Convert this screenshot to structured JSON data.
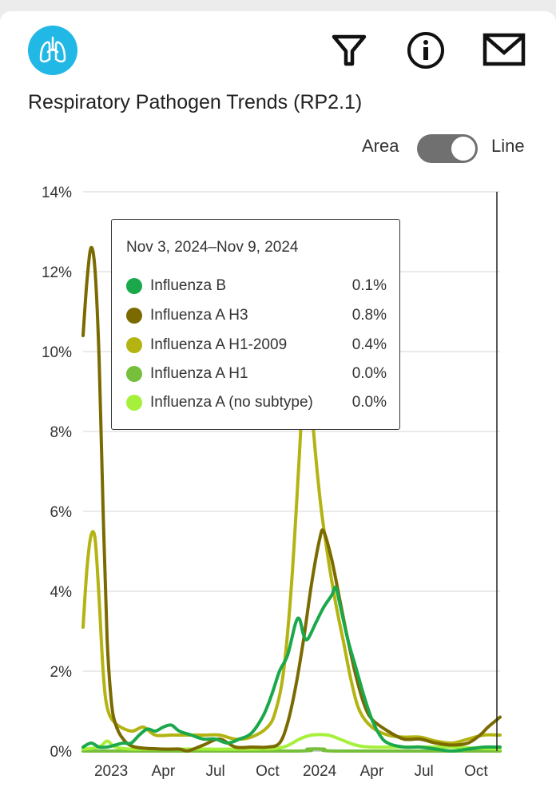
{
  "header": {
    "title": "Respiratory Pathogen Trends (RP2.1)",
    "icons": [
      "lungs-icon",
      "filter-icon",
      "info-icon",
      "mail-icon"
    ],
    "brand_color": "#22b8e6"
  },
  "toggle": {
    "left_label": "Area",
    "right_label": "Line",
    "selected": "Line"
  },
  "tooltip": {
    "date": "Nov 3, 2024–Nov 9, 2024",
    "rows": [
      {
        "name": "Influenza B",
        "value": "0.1%",
        "color": "#1aa84a"
      },
      {
        "name": "Influenza A H3",
        "value": "0.8%",
        "color": "#7a6a00"
      },
      {
        "name": "Influenza A H1-2009",
        "value": "0.4%",
        "color": "#b3b312"
      },
      {
        "name": "Influenza A H1",
        "value": "0.0%",
        "color": "#76bf3a"
      },
      {
        "name": "Influenza A (no subtype)",
        "value": "0.0%",
        "color": "#a6f03c"
      }
    ]
  },
  "chart_data": {
    "type": "line",
    "x_unit": "weeks since start (week 0 ≈ Nov 2022)",
    "x_tick_labels": [
      "2023",
      "Apr",
      "Jul",
      "Oct",
      "2024",
      "Apr",
      "Jul",
      "Oct"
    ],
    "x_tick_weeks": [
      7,
      20,
      33,
      46,
      59,
      72,
      85,
      98
    ],
    "y_tick_labels": [
      "0%",
      "2%",
      "4%",
      "6%",
      "8%",
      "10%",
      "12%",
      "14%"
    ],
    "ylim": [
      0,
      14
    ],
    "xlim": [
      0,
      104
    ],
    "grid": true,
    "series": [
      {
        "name": "Influenza A H3",
        "color": "#7a6a00",
        "points": [
          [
            0,
            10.4
          ],
          [
            1,
            11.8
          ],
          [
            2,
            12.6
          ],
          [
            3,
            12.0
          ],
          [
            4,
            9.8
          ],
          [
            5,
            6.0
          ],
          [
            6,
            2.8
          ],
          [
            7,
            1.3
          ],
          [
            8,
            0.7
          ],
          [
            10,
            0.3
          ],
          [
            13,
            0.1
          ],
          [
            20,
            0.05
          ],
          [
            24,
            0.05
          ],
          [
            26,
            0.0
          ],
          [
            30,
            0.15
          ],
          [
            34,
            0.3
          ],
          [
            38,
            0.1
          ],
          [
            42,
            0.1
          ],
          [
            46,
            0.1
          ],
          [
            49,
            0.2
          ],
          [
            51,
            0.7
          ],
          [
            53,
            1.6
          ],
          [
            55,
            2.8
          ],
          [
            57,
            4.2
          ],
          [
            59,
            5.3
          ],
          [
            60,
            5.5
          ],
          [
            62,
            4.8
          ],
          [
            64,
            3.8
          ],
          [
            66,
            2.8
          ],
          [
            68,
            1.9
          ],
          [
            70,
            1.2
          ],
          [
            72,
            0.8
          ],
          [
            76,
            0.5
          ],
          [
            80,
            0.3
          ],
          [
            84,
            0.3
          ],
          [
            88,
            0.2
          ],
          [
            92,
            0.15
          ],
          [
            96,
            0.2
          ],
          [
            99,
            0.4
          ],
          [
            101,
            0.6
          ],
          [
            104,
            0.85
          ]
        ]
      },
      {
        "name": "Influenza A H1-2009",
        "color": "#b3b312",
        "points": [
          [
            0,
            3.1
          ],
          [
            1,
            4.6
          ],
          [
            2,
            5.4
          ],
          [
            3,
            5.3
          ],
          [
            4,
            3.8
          ],
          [
            5,
            2.0
          ],
          [
            6,
            1.1
          ],
          [
            8,
            0.7
          ],
          [
            12,
            0.5
          ],
          [
            15,
            0.6
          ],
          [
            18,
            0.4
          ],
          [
            22,
            0.4
          ],
          [
            26,
            0.4
          ],
          [
            30,
            0.4
          ],
          [
            34,
            0.4
          ],
          [
            38,
            0.3
          ],
          [
            42,
            0.35
          ],
          [
            46,
            0.6
          ],
          [
            48,
            1.0
          ],
          [
            50,
            2.0
          ],
          [
            52,
            4.2
          ],
          [
            54,
            7.5
          ],
          [
            55,
            9.5
          ],
          [
            56,
            10.4
          ],
          [
            57,
            8.6
          ],
          [
            59,
            6.4
          ],
          [
            61,
            4.9
          ],
          [
            63,
            3.7
          ],
          [
            65,
            2.7
          ],
          [
            67,
            1.7
          ],
          [
            69,
            1.0
          ],
          [
            72,
            0.6
          ],
          [
            76,
            0.4
          ],
          [
            80,
            0.35
          ],
          [
            84,
            0.35
          ],
          [
            88,
            0.25
          ],
          [
            92,
            0.2
          ],
          [
            96,
            0.3
          ],
          [
            100,
            0.4
          ],
          [
            104,
            0.4
          ]
        ]
      },
      {
        "name": "Influenza B",
        "color": "#1aa84a",
        "points": [
          [
            0,
            0.1
          ],
          [
            2,
            0.2
          ],
          [
            4,
            0.1
          ],
          [
            6,
            0.1
          ],
          [
            8,
            0.15
          ],
          [
            10,
            0.2
          ],
          [
            12,
            0.2
          ],
          [
            14,
            0.4
          ],
          [
            16,
            0.55
          ],
          [
            18,
            0.5
          ],
          [
            20,
            0.6
          ],
          [
            22,
            0.65
          ],
          [
            24,
            0.5
          ],
          [
            27,
            0.4
          ],
          [
            30,
            0.3
          ],
          [
            33,
            0.3
          ],
          [
            36,
            0.2
          ],
          [
            39,
            0.3
          ],
          [
            42,
            0.45
          ],
          [
            45,
            0.9
          ],
          [
            47,
            1.4
          ],
          [
            49,
            2.0
          ],
          [
            51,
            2.4
          ],
          [
            53,
            3.2
          ],
          [
            54,
            3.3
          ],
          [
            55,
            2.9
          ],
          [
            56,
            2.8
          ],
          [
            58,
            3.2
          ],
          [
            60,
            3.6
          ],
          [
            62,
            3.9
          ],
          [
            63,
            4.1
          ],
          [
            64,
            3.7
          ],
          [
            66,
            2.8
          ],
          [
            68,
            2.1
          ],
          [
            70,
            1.4
          ],
          [
            72,
            0.8
          ],
          [
            74,
            0.4
          ],
          [
            76,
            0.2
          ],
          [
            80,
            0.1
          ],
          [
            84,
            0.1
          ],
          [
            88,
            0.05
          ],
          [
            92,
            0.0
          ],
          [
            96,
            0.05
          ],
          [
            100,
            0.1
          ],
          [
            104,
            0.1
          ]
        ]
      },
      {
        "name": "Influenza A H1",
        "color": "#76bf3a",
        "points": [
          [
            0,
            0.0
          ],
          [
            52,
            0.0
          ],
          [
            56,
            0.05
          ],
          [
            60,
            0.05
          ],
          [
            64,
            0.0
          ],
          [
            104,
            0.0
          ]
        ]
      },
      {
        "name": "Influenza A (no subtype)",
        "color": "#a6f03c",
        "points": [
          [
            0,
            0.05
          ],
          [
            4,
            0.1
          ],
          [
            6,
            0.25
          ],
          [
            8,
            0.1
          ],
          [
            12,
            0.05
          ],
          [
            20,
            0.05
          ],
          [
            30,
            0.05
          ],
          [
            44,
            0.05
          ],
          [
            50,
            0.1
          ],
          [
            54,
            0.3
          ],
          [
            57,
            0.4
          ],
          [
            61,
            0.4
          ],
          [
            64,
            0.3
          ],
          [
            68,
            0.15
          ],
          [
            72,
            0.1
          ],
          [
            80,
            0.1
          ],
          [
            90,
            0.1
          ],
          [
            104,
            0.05
          ]
        ]
      }
    ],
    "hover_week": 104
  }
}
